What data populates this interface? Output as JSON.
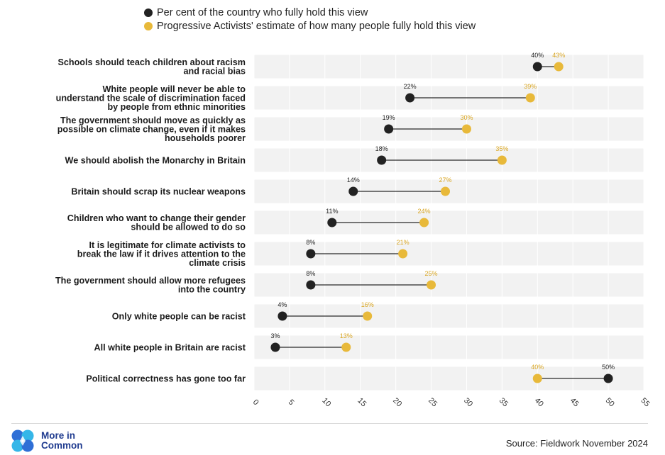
{
  "legend": {
    "items": [
      {
        "label": "Per cent of the country who fully hold this view",
        "color": "#222222"
      },
      {
        "label": "Progressive Activists' estimate of how many people fully hold this view",
        "color": "#E8B93A"
      }
    ]
  },
  "chart_data": {
    "type": "dumbbell",
    "xlim": [
      0,
      55
    ],
    "xticks": [
      0,
      5,
      10,
      15,
      20,
      25,
      30,
      35,
      40,
      45,
      50,
      55
    ],
    "grid": true,
    "colors": {
      "country": "#222222",
      "estimate": "#E8B93A"
    },
    "rows": [
      {
        "label": "Schools should teach children about racism and racial bias",
        "country": 40,
        "estimate": 43
      },
      {
        "label": "White people will never be able to understand the scale of discrimination faced by people from ethnic minorities",
        "country": 22,
        "estimate": 39
      },
      {
        "label": "The government should move as quickly as possible on climate change, even if it makes households poorer",
        "country": 19,
        "estimate": 30
      },
      {
        "label": "We should abolish the Monarchy in Britain",
        "country": 18,
        "estimate": 35
      },
      {
        "label": "Britain should scrap its nuclear weapons",
        "country": 14,
        "estimate": 27
      },
      {
        "label": "Children who want to change their gender should be allowed to do so",
        "country": 11,
        "estimate": 24
      },
      {
        "label": "It is legitimate for climate activists to break the law if it drives attention to the climate crisis",
        "country": 8,
        "estimate": 21
      },
      {
        "label": "The government should allow more refugees into the country",
        "country": 8,
        "estimate": 25
      },
      {
        "label": "Only white people can be racist",
        "country": 4,
        "estimate": 16
      },
      {
        "label": "All white people in Britain are racist",
        "country": 3,
        "estimate": 13
      },
      {
        "label": "Political correctness has gone too far",
        "country": 50,
        "estimate": 40
      }
    ]
  },
  "footer": {
    "logo_text_line1": "More in",
    "logo_text_line2": "Common",
    "source": "Source: Fieldwork November 2024"
  }
}
